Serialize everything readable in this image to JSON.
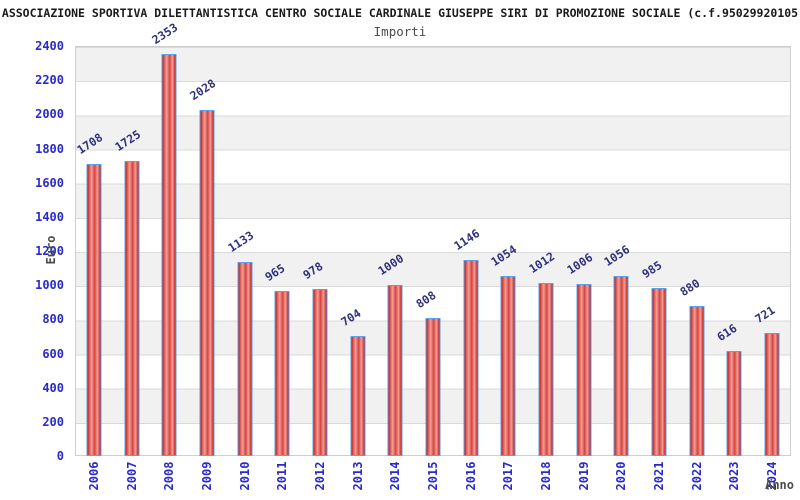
{
  "header": {
    "title": "ASSOCIAZIONE SPORTIVA DILETTANTISTICA CENTRO SOCIALE CARDINALE GIUSEPPE SIRI DI PROMOZIONE SOCIALE (c.f.95029920105",
    "subtitle": "Importi"
  },
  "chart_data": {
    "type": "bar",
    "title": "Importi",
    "xlabel": "Anno",
    "ylabel": "Euro",
    "categories": [
      "2006",
      "2007",
      "2008",
      "2009",
      "2010",
      "2011",
      "2012",
      "2013",
      "2014",
      "2015",
      "2016",
      "2017",
      "2018",
      "2019",
      "2020",
      "2021",
      "2022",
      "2023",
      "2024"
    ],
    "values": [
      1708,
      1725,
      2353,
      2028,
      1133,
      965,
      978,
      704,
      1000,
      808,
      1146,
      1054,
      1012,
      1006,
      1056,
      985,
      880,
      616,
      721
    ],
    "ylim": [
      0,
      2400
    ],
    "yticks": [
      0,
      200,
      400,
      600,
      800,
      1000,
      1200,
      1400,
      1600,
      1800,
      2000,
      2200,
      2400
    ],
    "grid": "horizontal-bands-alternating",
    "legend": "none",
    "colors": {
      "bar_fill_base": "#d8423c",
      "bar_fill_edge": "#c22020",
      "bar_fill_highlight": "#f0a09a",
      "bar_border": "#59a1e8",
      "axis_tick_label": "#2929cc",
      "bar_value_label": "#30307e",
      "axis_title": "#4c4c4c",
      "chart_title": "#1a1a1a",
      "band_gray": "#f1f1f2",
      "grid_line": "#dadada",
      "plot_border": "#cfcfcf",
      "background": "#ffffff"
    }
  }
}
